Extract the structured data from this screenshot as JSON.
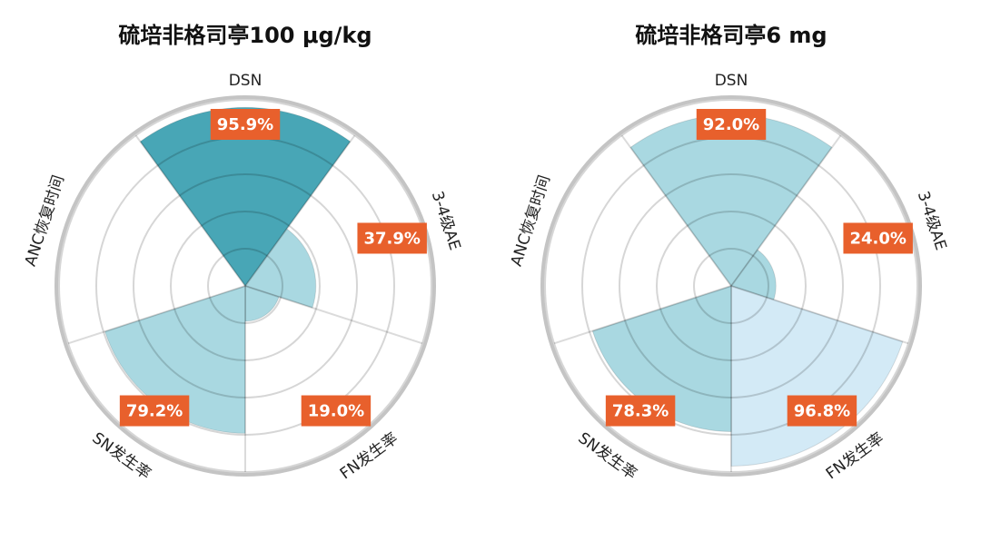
{
  "chart_data": [
    {
      "type": "polar",
      "title": "硫培非格司亭100 μg/kg",
      "categories": [
        "DSN",
        "3-4级AE",
        "FN发生率",
        "SN发生率",
        "ANC恢复时间"
      ],
      "values": [
        95.9,
        37.9,
        19.0,
        79.2,
        null
      ],
      "value_labels": [
        "95.9%",
        "37.9%",
        "19.0%",
        "79.2%",
        null
      ],
      "colors": [
        "#48a6b6",
        "#a9d8e1",
        "#a9d8e1",
        "#a9d8e1",
        "#a9d8e1"
      ],
      "rlim": [
        0,
        100
      ],
      "rgrid": [
        20,
        40,
        60,
        80,
        100
      ]
    },
    {
      "type": "polar",
      "title": "硫培非格司亭6 mg",
      "categories": [
        "DSN",
        "3-4级AE",
        "FN发生率",
        "SN发生率",
        "ANC恢复时间"
      ],
      "values": [
        92.0,
        24.0,
        96.8,
        78.3,
        null
      ],
      "value_labels": [
        "92.0%",
        "24.0%",
        "96.8%",
        "78.3%",
        null
      ],
      "colors": [
        "#a9d8e1",
        "#a9d8e1",
        "#d3eaf6",
        "#a9d8e1",
        "#a9d8e1"
      ],
      "rlim": [
        0,
        100
      ],
      "rgrid": [
        20,
        40,
        60,
        80,
        100
      ]
    }
  ]
}
